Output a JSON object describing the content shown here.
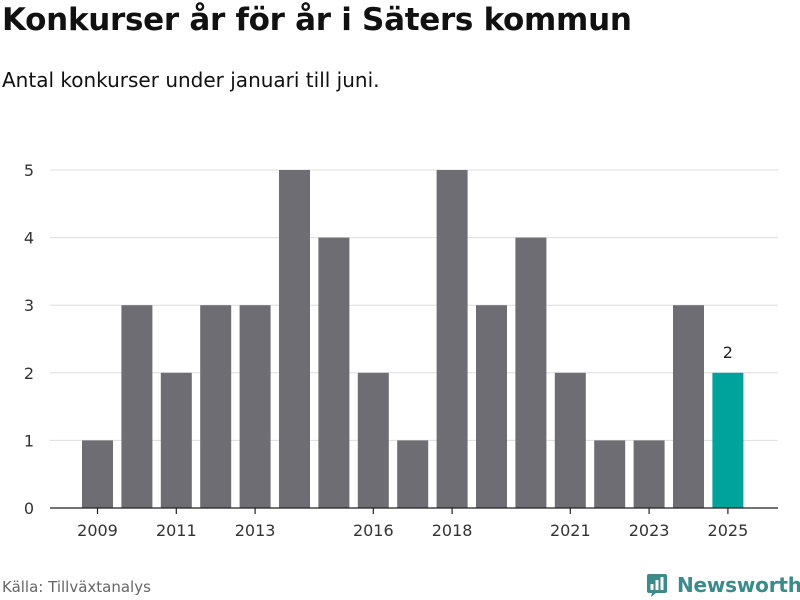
{
  "header": {
    "title": "Konkurser år för år i Säters kommun",
    "subtitle": "Antal konkurser under januari till juni."
  },
  "footer": {
    "source": "Källa: Tillväxtanalys",
    "brand": "Newsworthy"
  },
  "colors": {
    "bar": "#6e6d73",
    "highlight": "#00a39b",
    "grid": "#dddddd",
    "brand": "#3b8b8b"
  },
  "icons": {
    "brand_logo": "bar-chart-icon"
  },
  "chart_data": {
    "type": "bar",
    "title": "Konkurser år för år i Säters kommun",
    "subtitle": "Antal konkurser under januari till juni.",
    "categories": [
      "2009",
      "2010",
      "2011",
      "2012",
      "2013",
      "2014",
      "2015",
      "2016",
      "2017",
      "2018",
      "2019",
      "2020",
      "2021",
      "2022",
      "2023",
      "2024",
      "2025"
    ],
    "values": [
      1,
      3,
      2,
      3,
      3,
      5,
      4,
      2,
      1,
      5,
      3,
      4,
      2,
      1,
      1,
      3,
      2
    ],
    "x_tick_labels": [
      "2009",
      "2011",
      "2013",
      "2016",
      "2018",
      "2021",
      "2023",
      "2025"
    ],
    "y_ticks": [
      0,
      1,
      2,
      3,
      4,
      5
    ],
    "ylim": [
      0,
      5
    ],
    "grid": true,
    "highlight_category": "2025",
    "data_labels": [
      {
        "category": "2025",
        "label": "2"
      }
    ]
  }
}
